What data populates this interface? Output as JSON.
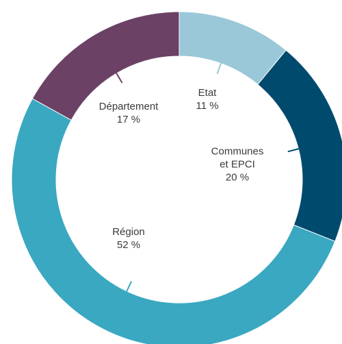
{
  "chart_data": {
    "type": "donut",
    "categories": [
      "Etat",
      "Communes\net EPCI",
      "Région",
      "Département"
    ],
    "values": [
      11,
      20,
      52,
      17
    ],
    "value_labels": [
      "11 %",
      "20 %",
      "52 %",
      "17 %"
    ],
    "colors": [
      "#9ac8d8",
      "#004a6e",
      "#3aa8c1",
      "#6b4165"
    ]
  }
}
